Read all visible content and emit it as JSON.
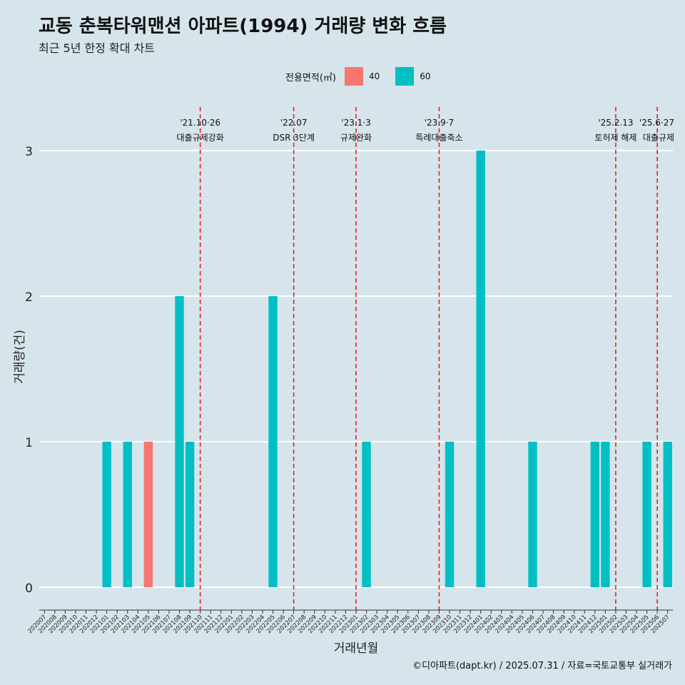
{
  "title": "교동 춘복타워맨션 아파트(1994) 거래량 변화 흐름",
  "subtitle": "최근 5년 한정 확대 차트",
  "caption": "©디아파트(dapt.kr) / 2025.07.31 / 자료=국토교통부 실거래가",
  "legend": {
    "title": "전용면적(㎡)",
    "items": [
      {
        "label": "40",
        "color": "#f8766d"
      },
      {
        "label": "60",
        "color": "#00bfc4"
      }
    ]
  },
  "chart_data": {
    "type": "bar",
    "xlabel": "거래년월",
    "ylabel": "거래량(건)",
    "ylim": [
      0,
      3
    ],
    "yticks": [
      0,
      1,
      2,
      3
    ],
    "categories": [
      "202007",
      "202008",
      "202009",
      "202010",
      "202011",
      "202012",
      "202101",
      "202102",
      "202103",
      "202104",
      "202105",
      "202106",
      "202107",
      "202108",
      "202109",
      "202110",
      "202111",
      "202112",
      "202201",
      "202202",
      "202203",
      "202204",
      "202205",
      "202206",
      "202207",
      "202208",
      "202209",
      "202210",
      "202211",
      "202212",
      "202301",
      "202302",
      "202303",
      "202304",
      "202305",
      "202306",
      "202307",
      "202308",
      "202309",
      "202310",
      "202311",
      "202312",
      "202401",
      "202402",
      "202403",
      "202404",
      "202405",
      "202406",
      "202407",
      "202408",
      "202409",
      "202410",
      "202411",
      "202412",
      "202501",
      "202502",
      "202503",
      "202504",
      "202505",
      "202506",
      "202507"
    ],
    "bars": [
      {
        "month": "202101",
        "area": "60",
        "value": 1
      },
      {
        "month": "202103",
        "area": "60",
        "value": 1
      },
      {
        "month": "202105",
        "area": "40",
        "value": 1
      },
      {
        "month": "202108",
        "area": "60",
        "value": 2
      },
      {
        "month": "202109",
        "area": "60",
        "value": 1
      },
      {
        "month": "202205",
        "area": "60",
        "value": 2
      },
      {
        "month": "202302",
        "area": "60",
        "value": 1
      },
      {
        "month": "202310",
        "area": "60",
        "value": 1
      },
      {
        "month": "202401",
        "area": "60",
        "value": 3
      },
      {
        "month": "202406",
        "area": "60",
        "value": 1
      },
      {
        "month": "202412",
        "area": "60",
        "value": 1
      },
      {
        "month": "202501",
        "area": "60",
        "value": 1
      },
      {
        "month": "202505",
        "area": "60",
        "value": 1
      },
      {
        "month": "202507",
        "area": "60",
        "value": 1
      }
    ],
    "events": [
      {
        "month": "202110",
        "date": "'21.10·26",
        "label": "대출규제강화"
      },
      {
        "month": "202207",
        "date": "'22.07",
        "label": "DSR 3단계"
      },
      {
        "month": "202301",
        "date": "'23.1·3",
        "label": "규제완화"
      },
      {
        "month": "202309",
        "date": "'23.9·7",
        "label": "특례대출축소"
      },
      {
        "month": "202502",
        "date": "'25.2.13",
        "label": "토허제 해제"
      },
      {
        "month": "202506",
        "date": "'25.6·27",
        "label": "대출규제"
      }
    ]
  }
}
